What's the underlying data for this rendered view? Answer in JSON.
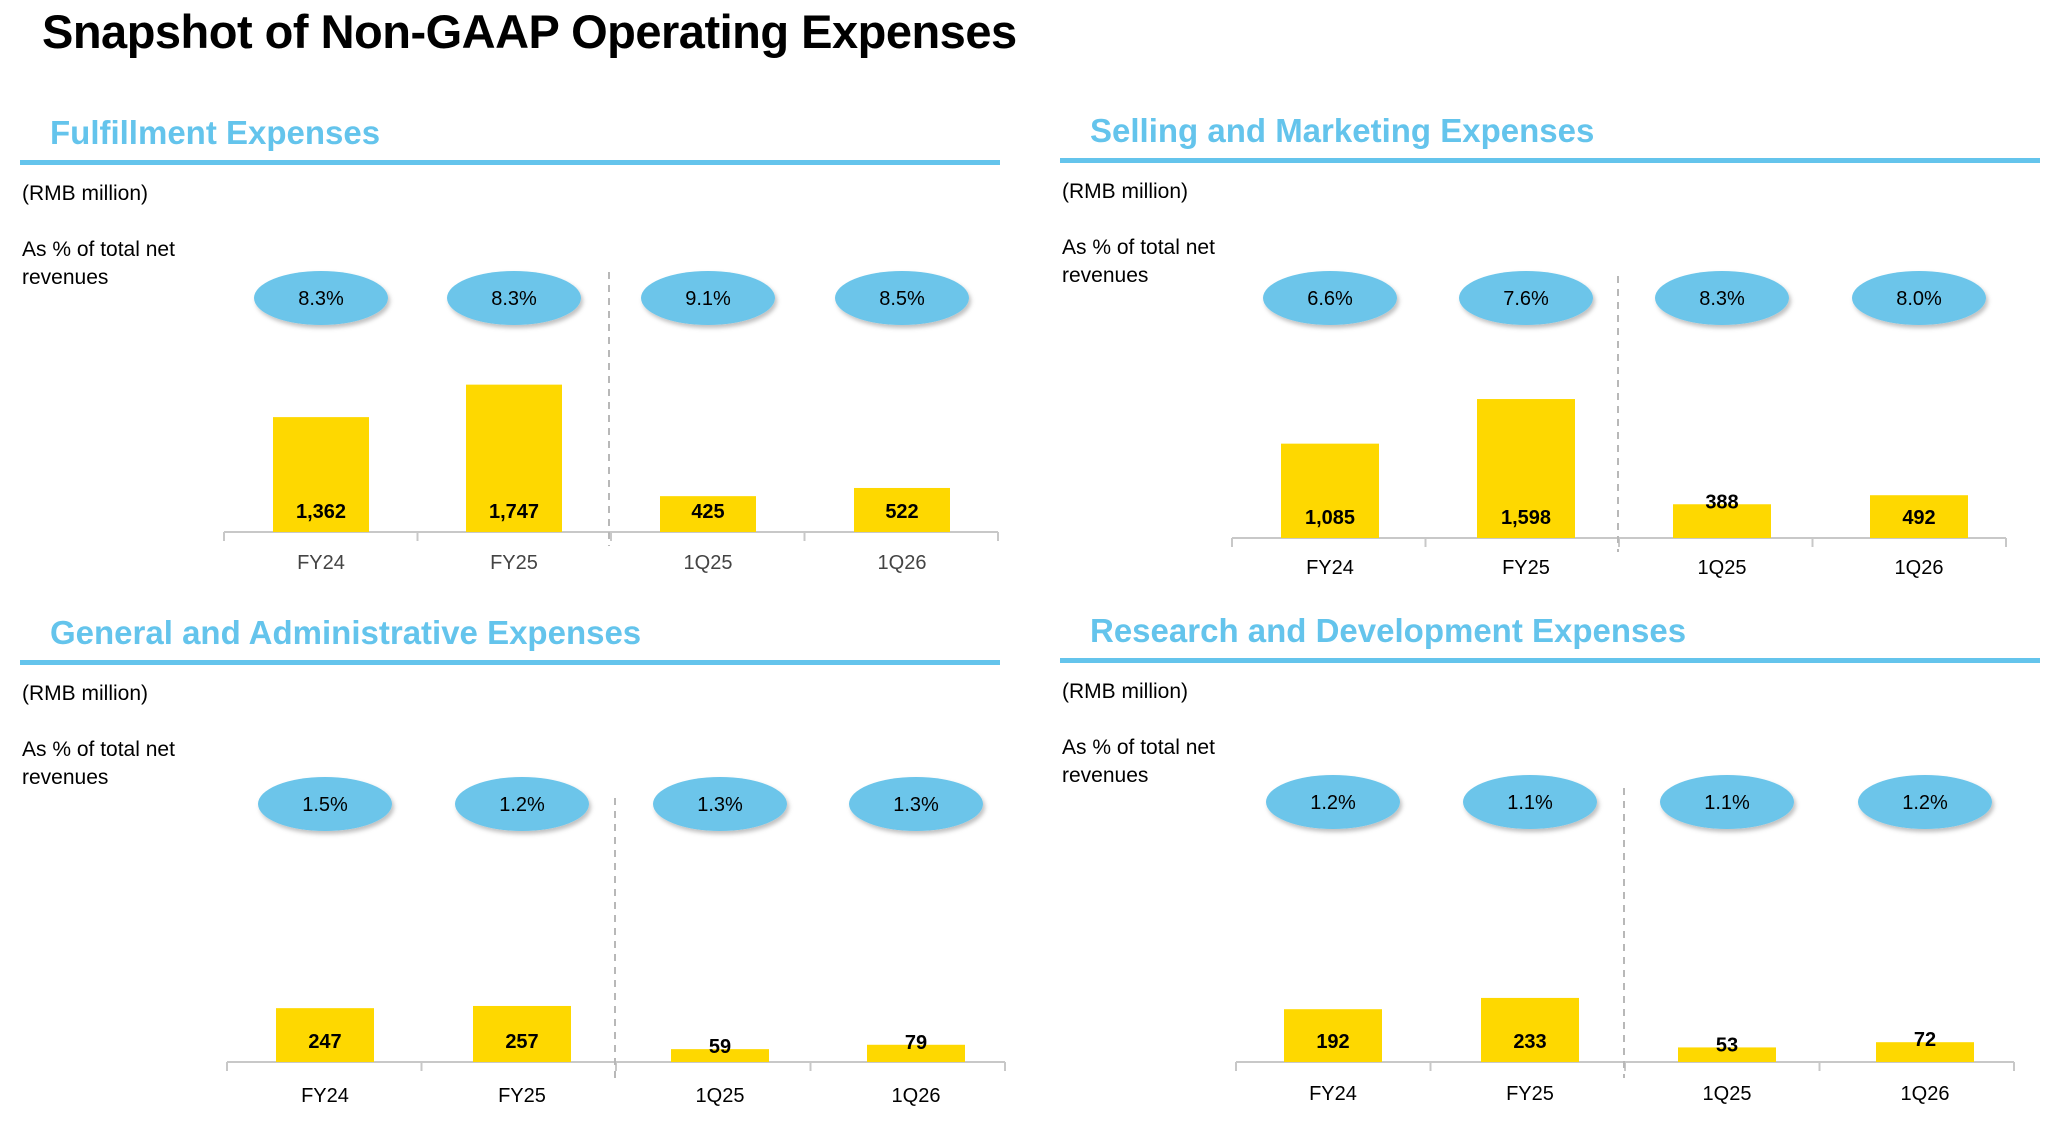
{
  "page_title": "Snapshot of Non-GAAP Operating Expenses",
  "colors": {
    "title_blue": "#64c4ec",
    "bubble_blue": "#6cc5ea",
    "bar_yellow": "#fed800",
    "axis_grey": "#c8c8c8",
    "divider_grey": "#b8b8b8"
  },
  "panels": [
    {
      "title": "Fulfillment Expenses",
      "unit_label": "(RMB million)",
      "pct_label": "As % of total net revenues"
    },
    {
      "title": "Selling and Marketing Expenses",
      "unit_label": "(RMB million)",
      "pct_label": "As % of total net revenues"
    },
    {
      "title": "General and Administrative Expenses",
      "unit_label": "(RMB million)",
      "pct_label": "As % of total net revenues"
    },
    {
      "title": "Research and Development Expenses",
      "unit_label": "(RMB million)",
      "pct_label": "As % of total net revenues"
    }
  ],
  "chart_data": [
    {
      "type": "bar",
      "title": "Fulfillment Expenses",
      "categories": [
        "FY24",
        "FY25",
        "1Q25",
        "1Q26"
      ],
      "values": [
        1362,
        1747,
        425,
        522
      ],
      "value_labels": [
        "1,362",
        "1,747",
        "425",
        "522"
      ],
      "pct_of_revenue": [
        "8.3%",
        "8.3%",
        "9.1%",
        "8.5%"
      ],
      "ylim": [
        0,
        2300
      ]
    },
    {
      "type": "bar",
      "title": "Selling and Marketing Expenses",
      "categories": [
        "FY24",
        "FY25",
        "1Q25",
        "1Q26"
      ],
      "values": [
        1085,
        1598,
        388,
        492
      ],
      "value_labels": [
        "1,085",
        "1,598",
        "388",
        "492"
      ],
      "pct_of_revenue": [
        "6.6%",
        "7.6%",
        "8.3%",
        "8.0%"
      ],
      "ylim": [
        0,
        2300
      ]
    },
    {
      "type": "bar",
      "title": "General and Administrative Expenses",
      "categories": [
        "FY24",
        "FY25",
        "1Q25",
        "1Q26"
      ],
      "values": [
        247,
        257,
        59,
        79
      ],
      "value_labels": [
        "247",
        "257",
        "59",
        "79"
      ],
      "pct_of_revenue": [
        "1.5%",
        "1.2%",
        "1.3%",
        "1.3%"
      ],
      "ylim": [
        0,
        1000
      ]
    },
    {
      "type": "bar",
      "title": "Research and Development Expenses",
      "categories": [
        "FY24",
        "FY25",
        "1Q25",
        "1Q26"
      ],
      "values": [
        192,
        233,
        53,
        72
      ],
      "value_labels": [
        "192",
        "233",
        "53",
        "72"
      ],
      "pct_of_revenue": [
        "1.2%",
        "1.1%",
        "1.1%",
        "1.2%"
      ],
      "ylim": [
        0,
        800
      ]
    }
  ]
}
